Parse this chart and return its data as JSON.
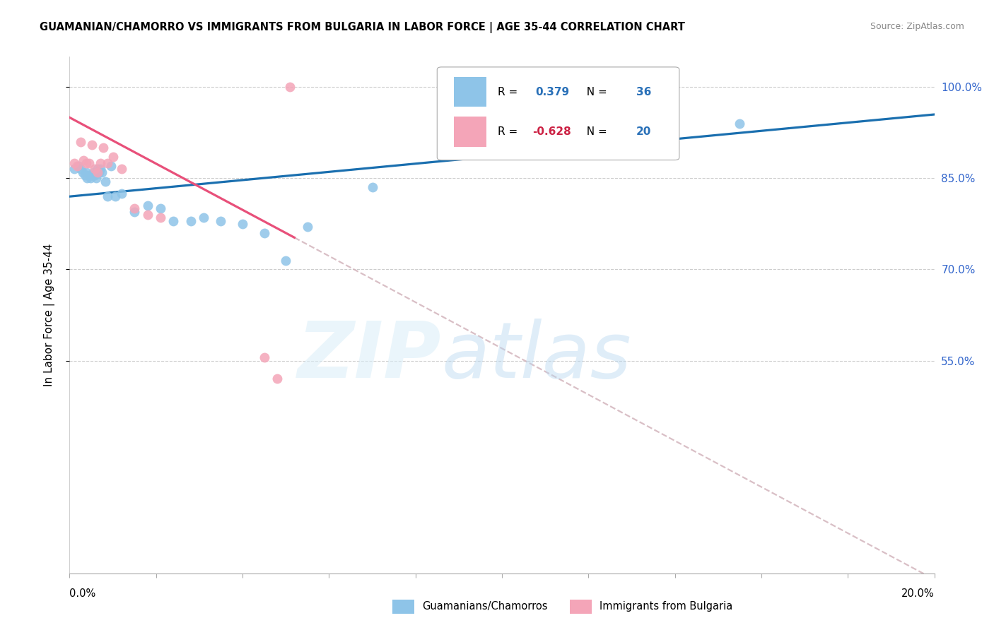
{
  "title": "GUAMANIAN/CHAMORRO VS IMMIGRANTS FROM BULGARIA IN LABOR FORCE | AGE 35-44 CORRELATION CHART",
  "source": "Source: ZipAtlas.com",
  "ylabel": "In Labor Force | Age 35-44",
  "legend_label1": "Guamanians/Chamorros",
  "legend_label2": "Immigrants from Bulgaria",
  "R1": 0.379,
  "N1": 36,
  "R2": -0.628,
  "N2": 20,
  "blue_color": "#8ec4e8",
  "pink_color": "#f4a5b8",
  "blue_line_color": "#1a6faf",
  "pink_line_color": "#e8507a",
  "dashed_color": "#d0b0b8",
  "blue_points_x": [
    0.1,
    0.2,
    0.25,
    0.3,
    0.35,
    0.38,
    0.4,
    0.45,
    0.48,
    0.52,
    0.55,
    0.58,
    0.62,
    0.65,
    0.68,
    0.72,
    0.75,
    0.82,
    0.88,
    0.95,
    1.05,
    1.2,
    1.5,
    1.8,
    2.1,
    2.4,
    2.8,
    3.1,
    3.5,
    4.0,
    4.5,
    5.0,
    5.5,
    7.0,
    13.5,
    15.5
  ],
  "blue_points_y": [
    86.5,
    87.0,
    86.5,
    86.0,
    85.5,
    86.0,
    85.0,
    85.5,
    85.0,
    85.5,
    86.0,
    85.5,
    85.0,
    86.5,
    86.0,
    86.5,
    86.0,
    84.5,
    82.0,
    87.0,
    82.0,
    82.5,
    79.5,
    80.5,
    80.0,
    78.0,
    78.0,
    78.5,
    78.0,
    77.5,
    76.0,
    71.5,
    77.0,
    83.5,
    98.0,
    94.0
  ],
  "pink_points_x": [
    0.1,
    0.18,
    0.25,
    0.32,
    0.38,
    0.45,
    0.52,
    0.58,
    0.65,
    0.72,
    0.78,
    0.88,
    1.0,
    1.2,
    1.5,
    1.8,
    2.1,
    4.5,
    4.8,
    5.1
  ],
  "pink_points_y": [
    87.5,
    87.0,
    91.0,
    88.0,
    87.5,
    87.5,
    90.5,
    86.5,
    86.0,
    87.5,
    90.0,
    87.5,
    88.5,
    86.5,
    80.0,
    79.0,
    78.5,
    55.5,
    52.0,
    100.0
  ],
  "xmin": 0.0,
  "xmax": 20.0,
  "ymin": 20.0,
  "ymax": 105.0,
  "yticks": [
    55.0,
    70.0,
    85.0,
    100.0
  ],
  "ytick_labels": [
    "55.0%",
    "70.0%",
    "85.0%",
    "100.0%"
  ],
  "blue_trend_x0": 0.0,
  "blue_trend_y0": 82.0,
  "blue_trend_x1": 20.0,
  "blue_trend_y1": 95.5,
  "pink_trend_x0": 0.0,
  "pink_trend_y0": 95.0,
  "pink_trend_x1": 20.0,
  "pink_trend_y1": 19.0,
  "pink_solid_end": 5.2,
  "grid_color": "#cccccc",
  "background_color": "#ffffff",
  "title_fontsize": 10.5,
  "source_fontsize": 9,
  "tick_label_fontsize": 11,
  "ylabel_fontsize": 11
}
